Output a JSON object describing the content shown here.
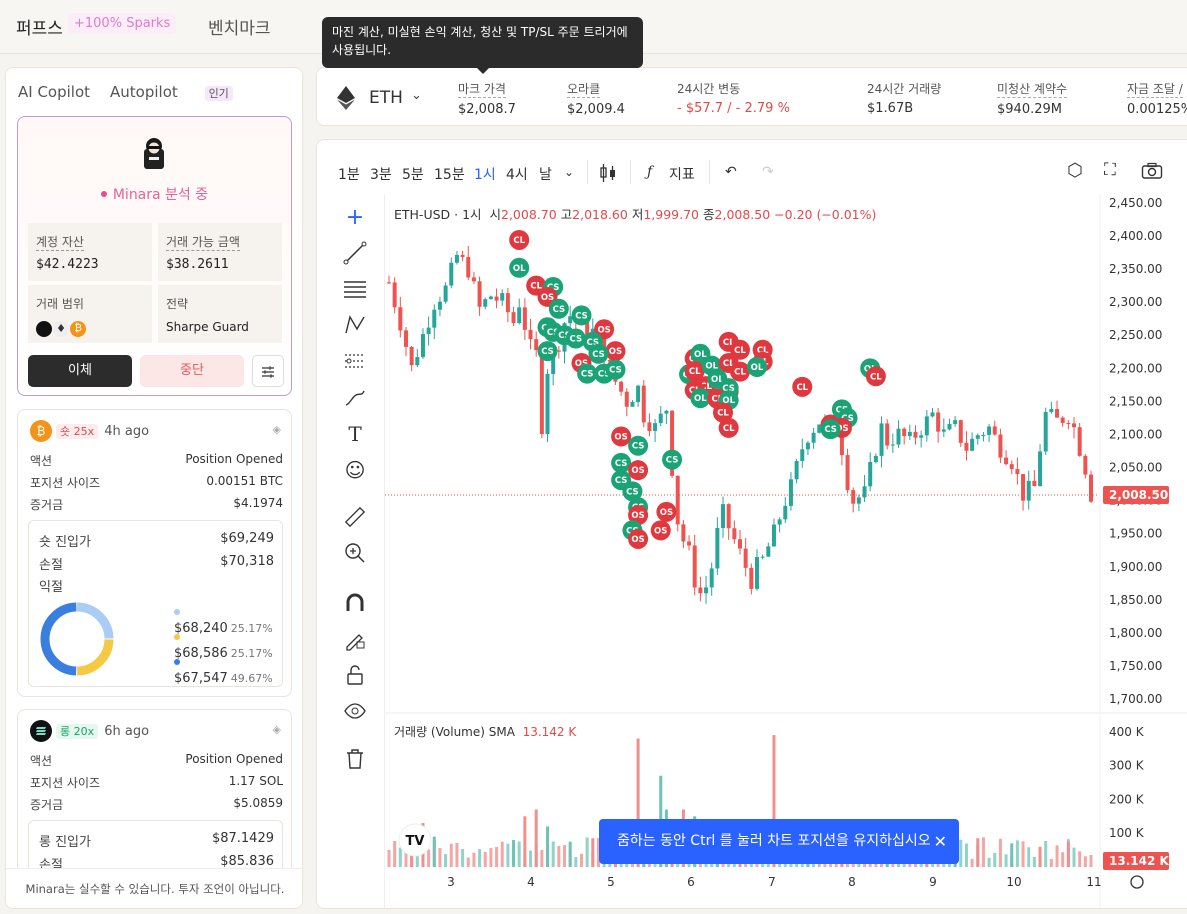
{
  "nav": {
    "perps": "퍼프스",
    "sparks": "+100% Sparks",
    "benchmark": "벤치마크"
  },
  "tooltip": "마진 계산, 미실현 손익 계산, 청산 및 TP/SL 주문 트리거에 사용됩니다.",
  "left": {
    "tab_copilot": "AI Copilot",
    "tab_autopilot": "Autopilot",
    "hot_badge": "인기",
    "status": "Minara 분석 중",
    "account_assets_label": "계정 자산",
    "account_assets": "$42.4223",
    "tradable_label": "거래 가능 금액",
    "tradable": "$38.2611",
    "range_label": "거래 범위",
    "strategy_label": "전략",
    "strategy": "Sharpe Guard",
    "transfer_btn": "이체",
    "stop_btn": "중단",
    "disclaimer": "Minara는 실수할 수 있습니다. 투자 조언이 아닙니다."
  },
  "positions": [
    {
      "coin": "BTC",
      "side": "숏 25x",
      "ago": "4h ago",
      "action_label": "액션",
      "action": "Position Opened",
      "size_label": "포지션 사이즈",
      "size": "0.00151 BTC",
      "margin_label": "증거금",
      "margin": "$4.1974",
      "entry_label": "숏 진입가",
      "entry": "$69,249",
      "sl_label": "손절",
      "sl": "$70,318",
      "tp_label": "익절",
      "tps": [
        {
          "price": "$68,240",
          "pct": "25.17%",
          "color": "#a9cdf5",
          "value": 25.17
        },
        {
          "price": "$68,586",
          "pct": "25.17%",
          "color": "#f6c945",
          "value": 25.17
        },
        {
          "price": "$67,547",
          "pct": "49.67%",
          "color": "#3a7fe0",
          "value": 49.67
        }
      ]
    },
    {
      "coin": "SOL",
      "side": "롱 20x",
      "ago": "6h ago",
      "action_label": "액션",
      "action": "Position Opened",
      "size_label": "포지션 사이즈",
      "size": "1.17 SOL",
      "margin_label": "증거금",
      "margin": "$5.0859",
      "entry_label": "롱 진입가",
      "entry": "$87.1429",
      "sl_label": "손절",
      "sl": "$85.836"
    }
  ],
  "ticker": {
    "symbol": "ETH",
    "items": [
      {
        "label": "마크 가격",
        "value": "$2,008.7"
      },
      {
        "label": "오라클",
        "value": "$2,009.4"
      },
      {
        "label": "24시간 변동",
        "value": "- $57.7 / - 2.79 %"
      },
      {
        "label": "24시간 거래량",
        "value": "$1.67B"
      },
      {
        "label": "미청산 계약수",
        "value": "$940.29M"
      },
      {
        "label": "자금 조달 /",
        "value": "0.00125%"
      }
    ]
  },
  "toolbar": {
    "intervals": [
      "1분",
      "3분",
      "5분",
      "15분",
      "1시",
      "4시",
      "날"
    ],
    "active_interval": "1시",
    "indicators": "지표"
  },
  "chart_legend": {
    "symbol": "ETH-USD · 1시",
    "o_label": "시",
    "o": "2,008.70",
    "h_label": "고",
    "h": "2,018.60",
    "l_label": "저",
    "l": "1,999.70",
    "c_label": "종",
    "c": "2,008.50",
    "change": "−0.20 (−0.01%)"
  },
  "volume_legend": {
    "label": "거래량 (Volume) SMA",
    "value": "13.142 K"
  },
  "toast": {
    "text": "줌하는 동안 Ctrl 를 눌러 차트 포지션을 유지하십시오"
  },
  "chart_data": {
    "type": "candlestick",
    "price_axis": [
      "2,450.00",
      "2,400.00",
      "2,350.00",
      "2,300.00",
      "2,250.00",
      "2,200.00",
      "2,150.00",
      "2,100.00",
      "2,050.00",
      "2,000.00",
      "1,950.00",
      "1,900.00",
      "1,850.00",
      "1,800.00",
      "1,750.00",
      "1,700.00"
    ],
    "price_ticks": [
      2450,
      2400,
      2350,
      2300,
      2250,
      2200,
      2150,
      2100,
      2050,
      2000,
      1950,
      1900,
      1850,
      1800,
      1750,
      1700
    ],
    "ylim": [
      1688,
      2462
    ],
    "last_price": 2008.5,
    "last_price_label": "2,008.50",
    "volume_axis": [
      "400 K",
      "300 K",
      "200 K",
      "100 K"
    ],
    "volume_ticks": [
      400,
      300,
      200,
      100
    ],
    "volume_label": "13.142 K",
    "x_labels": [
      "3",
      "4",
      "5",
      "6",
      "7",
      "8",
      "9",
      "10",
      "11"
    ],
    "path": [
      [
        0,
        2330
      ],
      [
        2,
        2270
      ],
      [
        4,
        2200
      ],
      [
        6,
        2250
      ],
      [
        8,
        2300
      ],
      [
        10,
        2320
      ],
      [
        12,
        2370
      ],
      [
        14,
        2350
      ],
      [
        16,
        2290
      ],
      [
        18,
        2310
      ],
      [
        20,
        2300
      ],
      [
        22,
        2270
      ],
      [
        23,
        2300
      ],
      [
        25,
        2230
      ],
      [
        26,
        2220
      ],
      [
        27,
        2115
      ],
      [
        28,
        2200
      ],
      [
        30,
        2240
      ],
      [
        31,
        2270
      ],
      [
        32,
        2280
      ],
      [
        33,
        2270
      ],
      [
        35,
        2260
      ],
      [
        37,
        2250
      ],
      [
        39,
        2200
      ],
      [
        40,
        2180
      ],
      [
        42,
        2150
      ],
      [
        44,
        2170
      ],
      [
        45,
        2130
      ],
      [
        47,
        2110
      ],
      [
        49,
        2140
      ],
      [
        50,
        2050
      ],
      [
        51,
        1970
      ],
      [
        52,
        1940
      ],
      [
        53,
        1920
      ],
      [
        54,
        1880
      ],
      [
        55,
        1860
      ],
      [
        56,
        1870
      ],
      [
        57,
        1900
      ],
      [
        58,
        1950
      ],
      [
        59,
        1980
      ],
      [
        60,
        1960
      ],
      [
        61,
        1940
      ],
      [
        62,
        1920
      ],
      [
        63,
        1900
      ],
      [
        64,
        1880
      ],
      [
        65,
        1900
      ],
      [
        66,
        1910
      ],
      [
        68,
        1950
      ],
      [
        70,
        2000
      ],
      [
        71,
        2020
      ],
      [
        73,
        2080
      ],
      [
        74,
        2100
      ],
      [
        76,
        2120
      ],
      [
        78,
        2110
      ],
      [
        79,
        2130
      ],
      [
        80,
        2080
      ],
      [
        81,
        2030
      ],
      [
        82,
        2000
      ],
      [
        84,
        2010
      ],
      [
        86,
        2080
      ],
      [
        87,
        2110
      ],
      [
        88,
        2090
      ],
      [
        90,
        2100
      ],
      [
        92,
        2090
      ],
      [
        94,
        2110
      ],
      [
        96,
        2130
      ],
      [
        98,
        2100
      ],
      [
        100,
        2110
      ],
      [
        102,
        2080
      ],
      [
        104,
        2100
      ],
      [
        106,
        2110
      ],
      [
        108,
        2080
      ],
      [
        110,
        2060
      ],
      [
        112,
        2010
      ],
      [
        114,
        2020
      ],
      [
        115,
        2080
      ],
      [
        116,
        2130
      ],
      [
        118,
        2120
      ],
      [
        120,
        2130
      ],
      [
        121,
        2110
      ],
      [
        122,
        2080
      ],
      [
        123,
        2050
      ],
      [
        124,
        2010
      ]
    ],
    "signals": [
      {
        "t": "CL",
        "i": 23,
        "p": 2394
      },
      {
        "t": "OL",
        "i": 23,
        "p": 2352
      },
      {
        "t": "CL",
        "i": 26,
        "p": 2325
      },
      {
        "t": "CS",
        "i": 29,
        "p": 2323
      },
      {
        "t": "OS",
        "i": 28,
        "p": 2308
      },
      {
        "t": "CS",
        "i": 30,
        "p": 2290
      },
      {
        "t": "CS",
        "i": 34,
        "p": 2280
      },
      {
        "t": "CS",
        "i": 28,
        "p": 2262
      },
      {
        "t": "CS",
        "i": 29,
        "p": 2255
      },
      {
        "t": "CS",
        "i": 31,
        "p": 2250
      },
      {
        "t": "OS",
        "i": 38,
        "p": 2259
      },
      {
        "t": "CS",
        "i": 33,
        "p": 2245
      },
      {
        "t": "CS",
        "i": 36,
        "p": 2240
      },
      {
        "t": "CS",
        "i": 28,
        "p": 2226
      },
      {
        "t": "OS",
        "i": 40,
        "p": 2226
      },
      {
        "t": "CS",
        "i": 37,
        "p": 2222
      },
      {
        "t": "OS",
        "i": 34,
        "p": 2208
      },
      {
        "t": "CS",
        "i": 35,
        "p": 2192
      },
      {
        "t": "CS",
        "i": 38,
        "p": 2192
      },
      {
        "t": "CS",
        "i": 40,
        "p": 2198
      },
      {
        "t": "OS",
        "i": 41,
        "p": 2097
      },
      {
        "t": "CS",
        "i": 44,
        "p": 2083
      },
      {
        "t": "CS",
        "i": 41,
        "p": 2057
      },
      {
        "t": "OS",
        "i": 44,
        "p": 2046
      },
      {
        "t": "CS",
        "i": 41,
        "p": 2031
      },
      {
        "t": "CS",
        "i": 43,
        "p": 2014
      },
      {
        "t": "CS",
        "i": 44,
        "p": 1990
      },
      {
        "t": "OS",
        "i": 44,
        "p": 1978
      },
      {
        "t": "CS",
        "i": 43,
        "p": 1955
      },
      {
        "t": "OS",
        "i": 44,
        "p": 1942
      },
      {
        "t": "OS",
        "i": 48,
        "p": 1955
      },
      {
        "t": "OS",
        "i": 49,
        "p": 1983
      },
      {
        "t": "CS",
        "i": 50,
        "p": 2062
      },
      {
        "t": "CS",
        "i": 53,
        "p": 2191
      },
      {
        "t": "CL",
        "i": 54,
        "p": 2215
      },
      {
        "t": "OL",
        "i": 55,
        "p": 2222
      },
      {
        "t": "CL",
        "i": 54,
        "p": 2196
      },
      {
        "t": "OL",
        "i": 57,
        "p": 2204
      },
      {
        "t": "CL",
        "i": 56,
        "p": 2173
      },
      {
        "t": "CL",
        "i": 54,
        "p": 2167
      },
      {
        "t": "OL",
        "i": 55,
        "p": 2155
      },
      {
        "t": "CL",
        "i": 60,
        "p": 2165
      },
      {
        "t": "CL",
        "i": 60,
        "p": 2240
      },
      {
        "t": "CL",
        "i": 62,
        "p": 2228
      },
      {
        "t": "CL",
        "i": 60,
        "p": 2208
      },
      {
        "t": "CL",
        "i": 62,
        "p": 2195
      },
      {
        "t": "OL",
        "i": 58,
        "p": 2184
      },
      {
        "t": "CS",
        "i": 60,
        "p": 2170
      },
      {
        "t": "CL",
        "i": 58,
        "p": 2154
      },
      {
        "t": "OL",
        "i": 60,
        "p": 2152
      },
      {
        "t": "CL",
        "i": 59,
        "p": 2133
      },
      {
        "t": "CL",
        "i": 60,
        "p": 2110
      },
      {
        "t": "CL",
        "i": 66,
        "p": 2228
      },
      {
        "t": "CL",
        "i": 66,
        "p": 2210
      },
      {
        "t": "OL",
        "i": 65,
        "p": 2202
      },
      {
        "t": "CL",
        "i": 73,
        "p": 2172
      },
      {
        "t": "CL",
        "i": 78,
        "p": 2115
      },
      {
        "t": "CS",
        "i": 80,
        "p": 2138
      },
      {
        "t": "CS",
        "i": 81,
        "p": 2125
      },
      {
        "t": "OS",
        "i": 80,
        "p": 2110
      },
      {
        "t": "CS",
        "i": 78,
        "p": 2108
      },
      {
        "t": "OL",
        "i": 85,
        "p": 2200
      },
      {
        "t": "CL",
        "i": 86,
        "p": 2188
      }
    ],
    "volume": [
      {
        "i": 4,
        "v": 60,
        "up": false
      },
      {
        "i": 6,
        "v": 130,
        "up": false
      },
      {
        "i": 8,
        "v": 90,
        "up": true
      },
      {
        "i": 22,
        "v": 80,
        "up": true
      },
      {
        "i": 24,
        "v": 150,
        "up": false
      },
      {
        "i": 26,
        "v": 170,
        "up": false
      },
      {
        "i": 28,
        "v": 120,
        "up": true
      },
      {
        "i": 32,
        "v": 75,
        "up": true
      },
      {
        "i": 36,
        "v": 85,
        "up": false
      },
      {
        "i": 40,
        "v": 90,
        "up": false
      },
      {
        "i": 44,
        "v": 380,
        "up": false
      },
      {
        "i": 45,
        "v": 120,
        "up": true
      },
      {
        "i": 48,
        "v": 270,
        "up": true
      },
      {
        "i": 49,
        "v": 170,
        "up": true
      },
      {
        "i": 50,
        "v": 140,
        "up": false
      },
      {
        "i": 52,
        "v": 170,
        "up": false
      },
      {
        "i": 54,
        "v": 150,
        "up": true
      },
      {
        "i": 58,
        "v": 70,
        "up": true
      },
      {
        "i": 62,
        "v": 80,
        "up": false
      },
      {
        "i": 68,
        "v": 390,
        "up": false
      },
      {
        "i": 74,
        "v": 90,
        "up": true
      },
      {
        "i": 80,
        "v": 60,
        "up": false
      },
      {
        "i": 88,
        "v": 80,
        "up": true
      },
      {
        "i": 95,
        "v": 70,
        "up": false
      },
      {
        "i": 100,
        "v": 60,
        "up": true
      },
      {
        "i": 104,
        "v": 85,
        "up": false
      },
      {
        "i": 110,
        "v": 70,
        "up": true
      },
      {
        "i": 115,
        "v": 60,
        "up": false
      },
      {
        "i": 120,
        "v": 75,
        "up": false
      }
    ],
    "volume_max": 420
  }
}
